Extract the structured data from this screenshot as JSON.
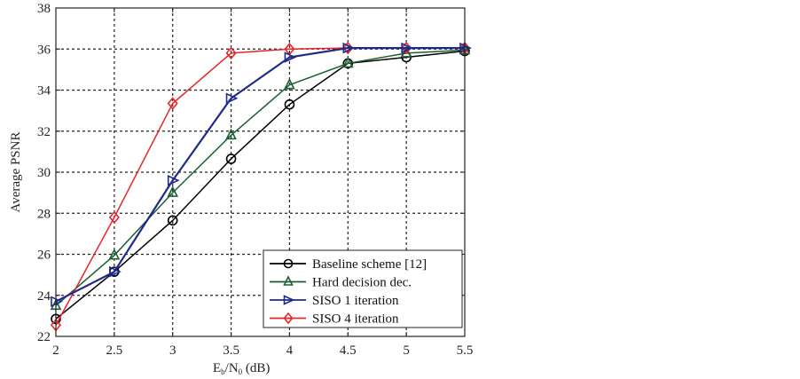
{
  "chart_data": {
    "type": "line",
    "title": "",
    "xlabel": "Eb/N0 (dB)",
    "xlabel_parts": {
      "E": "E",
      "b": "b",
      "slash": "/N",
      "zero": "0",
      "unit": " (dB)"
    },
    "ylabel": "Average PSNR",
    "xlim": [
      2,
      5.5
    ],
    "ylim": [
      22,
      38
    ],
    "grid": true,
    "legend_position": "lower right",
    "x": [
      2,
      2.5,
      3,
      3.5,
      4,
      4.5,
      5,
      5.5
    ],
    "x_ticks": [
      "2",
      "2.5",
      "3",
      "3.5",
      "4",
      "4.5",
      "5",
      "5.5"
    ],
    "y_ticks": [
      "22",
      "24",
      "26",
      "28",
      "30",
      "32",
      "34",
      "36",
      "38"
    ],
    "series": [
      {
        "name": "Baseline scheme [12]",
        "color": "#000000",
        "marker": "circle",
        "values": [
          22.85,
          25.15,
          27.65,
          30.65,
          33.3,
          35.3,
          35.6,
          35.9
        ]
      },
      {
        "name": "Hard decision dec.",
        "color": "#1a5e32",
        "marker": "triangle-up",
        "values": [
          23.5,
          25.95,
          29.0,
          31.8,
          34.25,
          35.3,
          35.8,
          35.95
        ]
      },
      {
        "name": "SISO 1 iteration",
        "color": "#1f2a8c",
        "marker": "triangle-right",
        "values": [
          23.7,
          25.15,
          29.6,
          33.6,
          35.6,
          36.05,
          36.05,
          36.05
        ]
      },
      {
        "name": "SISO 4 iteration",
        "color": "#e8262a",
        "marker": "diamond",
        "values": [
          22.55,
          27.8,
          33.35,
          35.8,
          36.0,
          36.05,
          36.05,
          36.05
        ]
      }
    ]
  }
}
